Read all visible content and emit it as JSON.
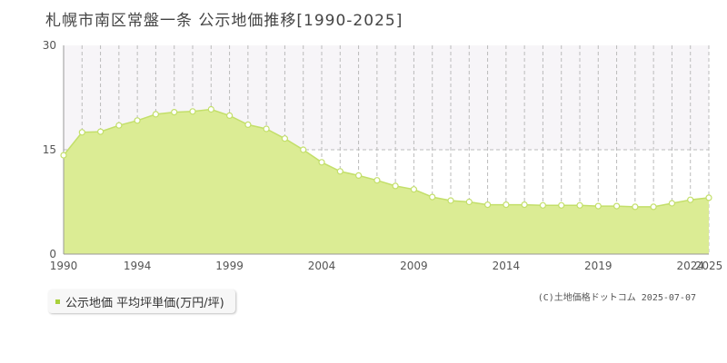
{
  "colors": {
    "area_fill": "#dbec94",
    "line": "#c3df6a",
    "marker_fill": "#ffffff",
    "grid": "#bbbbbb",
    "axis": "#999999",
    "band": "#f7f5f8",
    "legend_swatch": "#a8d03a"
  },
  "legend": {
    "label": "公示地価 平均坪単価(万円/坪)"
  },
  "copyright": "(C)土地価格ドットコム 2025-07-07",
  "chart_data": {
    "type": "area",
    "title": "札幌市南区常盤一条 公示地価推移[1990-2025]",
    "xlabel": "",
    "ylabel": "",
    "xlim": [
      1990,
      2025
    ],
    "ylim": [
      0,
      30
    ],
    "y_ticks": [
      "0",
      "15",
      "30"
    ],
    "x_ticks": [
      "1990",
      "1994",
      "1999",
      "2004",
      "2009",
      "2014",
      "2019",
      "2024",
      "2025"
    ],
    "grid": "vertical dashed per year; horizontal dashed at 15",
    "series": [
      {
        "name": "公示地価 平均坪単価(万円/坪)",
        "x": [
          1990,
          1991,
          1992,
          1993,
          1994,
          1995,
          1996,
          1997,
          1998,
          1999,
          2000,
          2001,
          2002,
          2003,
          2004,
          2005,
          2006,
          2007,
          2008,
          2009,
          2010,
          2011,
          2012,
          2013,
          2014,
          2015,
          2016,
          2017,
          2018,
          2019,
          2020,
          2021,
          2022,
          2023,
          2024,
          2025
        ],
        "values": [
          14.2,
          17.5,
          17.6,
          18.5,
          19.2,
          20.1,
          20.4,
          20.5,
          20.8,
          19.9,
          18.6,
          18.0,
          16.6,
          15.0,
          13.2,
          11.9,
          11.3,
          10.6,
          9.8,
          9.3,
          8.2,
          7.7,
          7.5,
          7.1,
          7.1,
          7.1,
          7.0,
          7.0,
          7.0,
          6.9,
          6.9,
          6.8,
          6.8,
          7.3,
          7.8,
          8.1
        ]
      }
    ]
  }
}
